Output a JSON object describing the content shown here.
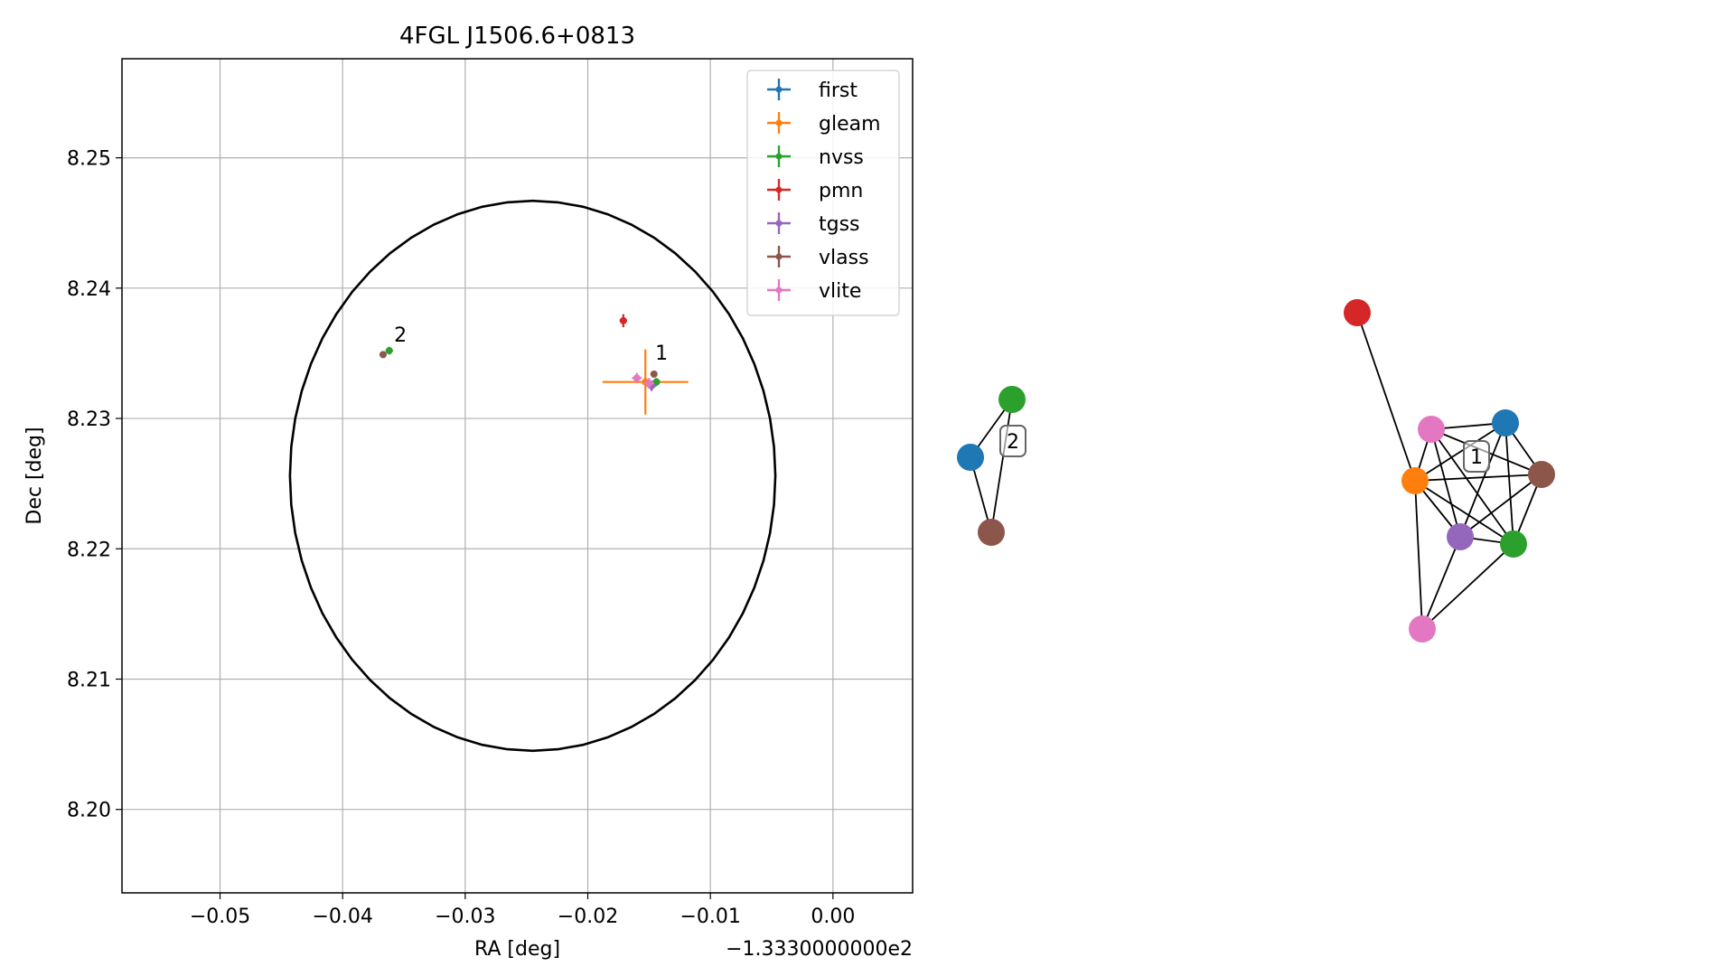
{
  "chart_data": [
    {
      "type": "scatter",
      "title": "4FGL J1506.6+0813",
      "xlabel": "RA [deg]",
      "ylabel": "Dec [deg]",
      "x_offset_label": "−1.3330000000e2",
      "x_offset": -133.3,
      "xlim": [
        -0.058,
        0.0065
      ],
      "ylim": [
        8.1936,
        8.2576
      ],
      "x_ticks": [
        -0.05,
        -0.04,
        -0.03,
        -0.02,
        -0.01,
        0.0
      ],
      "x_tick_labels": [
        "−0.05",
        "−0.04",
        "−0.03",
        "−0.02",
        "−0.01",
        "0.00"
      ],
      "y_ticks": [
        8.2,
        8.21,
        8.22,
        8.23,
        8.24,
        8.25
      ],
      "y_tick_labels": [
        "8.20",
        "8.21",
        "8.22",
        "8.23",
        "8.24",
        "8.25"
      ],
      "grid": true,
      "legend_position": "top-right",
      "ellipse": {
        "center": [
          -0.0245,
          8.2256
        ],
        "semi_axis_x": 0.0198,
        "semi_axis_y": 0.0211,
        "color": "#000000"
      },
      "series": [
        {
          "name": "first",
          "color": "#1f77b4",
          "points": [
            {
              "x": -0.0144,
              "y": 8.2328,
              "xerr": 0.0002,
              "yerr": 0.0002
            }
          ]
        },
        {
          "name": "gleam",
          "color": "#ff7f0e",
          "points": [
            {
              "x": -0.0153,
              "y": 8.2328,
              "xerr": 0.0035,
              "yerr": 0.0025
            }
          ]
        },
        {
          "name": "nvss",
          "color": "#2ca02c",
          "points": [
            {
              "x": -0.0362,
              "y": 8.2352,
              "xerr": 0.0003,
              "yerr": 0.0003
            },
            {
              "x": -0.0144,
              "y": 8.2328,
              "xerr": 0.0003,
              "yerr": 0.0003
            }
          ]
        },
        {
          "name": "pmn",
          "color": "#d62728",
          "points": [
            {
              "x": -0.0171,
              "y": 8.2375,
              "xerr": 0.0003,
              "yerr": 0.0005
            }
          ]
        },
        {
          "name": "tgss",
          "color": "#9467bd",
          "points": [
            {
              "x": -0.0148,
              "y": 8.2325,
              "xerr": 0.0004,
              "yerr": 0.0004
            }
          ]
        },
        {
          "name": "vlass",
          "color": "#8c564b",
          "points": [
            {
              "x": -0.0367,
              "y": 8.2349,
              "xerr": 0.0001,
              "yerr": 0.0001
            },
            {
              "x": -0.0146,
              "y": 8.2334,
              "xerr": 0.0001,
              "yerr": 0.0001
            }
          ]
        },
        {
          "name": "vlite",
          "color": "#e377c2",
          "points": [
            {
              "x": -0.016,
              "y": 8.2331,
              "xerr": 0.0004,
              "yerr": 0.0004
            },
            {
              "x": -0.015,
              "y": 8.2327,
              "xerr": 0.0004,
              "yerr": 0.0004
            }
          ]
        }
      ],
      "annotations": [
        {
          "text": "2",
          "x": -0.0358,
          "y": 8.2359
        },
        {
          "text": "1",
          "x": -0.0145,
          "y": 8.2345
        }
      ]
    },
    {
      "type": "network",
      "groups": [
        {
          "label": "2",
          "nodes": [
            {
              "id": "first",
              "color": "#1f77b4"
            },
            {
              "id": "nvss",
              "color": "#2ca02c"
            },
            {
              "id": "vlass",
              "color": "#8c564b"
            }
          ],
          "edges": [
            [
              "first",
              "nvss"
            ],
            [
              "first",
              "vlass"
            ],
            [
              "nvss",
              "vlass"
            ]
          ]
        },
        {
          "label": "1",
          "nodes": [
            {
              "id": "pmn",
              "color": "#d62728"
            },
            {
              "id": "vlite_a",
              "color": "#e377c2"
            },
            {
              "id": "first",
              "color": "#1f77b4"
            },
            {
              "id": "vlass",
              "color": "#8c564b"
            },
            {
              "id": "gleam",
              "color": "#ff7f0e"
            },
            {
              "id": "tgss",
              "color": "#9467bd"
            },
            {
              "id": "nvss",
              "color": "#2ca02c"
            },
            {
              "id": "vlite_b",
              "color": "#e377c2"
            }
          ],
          "edges": [
            [
              "pmn",
              "gleam"
            ],
            [
              "gleam",
              "vlite_a"
            ],
            [
              "gleam",
              "first"
            ],
            [
              "gleam",
              "vlass"
            ],
            [
              "gleam",
              "tgss"
            ],
            [
              "gleam",
              "nvss"
            ],
            [
              "gleam",
              "vlite_b"
            ],
            [
              "vlite_a",
              "first"
            ],
            [
              "vlite_a",
              "vlass"
            ],
            [
              "vlite_a",
              "tgss"
            ],
            [
              "vlite_a",
              "nvss"
            ],
            [
              "first",
              "vlass"
            ],
            [
              "first",
              "tgss"
            ],
            [
              "first",
              "nvss"
            ],
            [
              "vlass",
              "tgss"
            ],
            [
              "vlass",
              "nvss"
            ],
            [
              "tgss",
              "nvss"
            ],
            [
              "tgss",
              "vlite_b"
            ],
            [
              "nvss",
              "vlite_b"
            ]
          ]
        }
      ]
    }
  ]
}
